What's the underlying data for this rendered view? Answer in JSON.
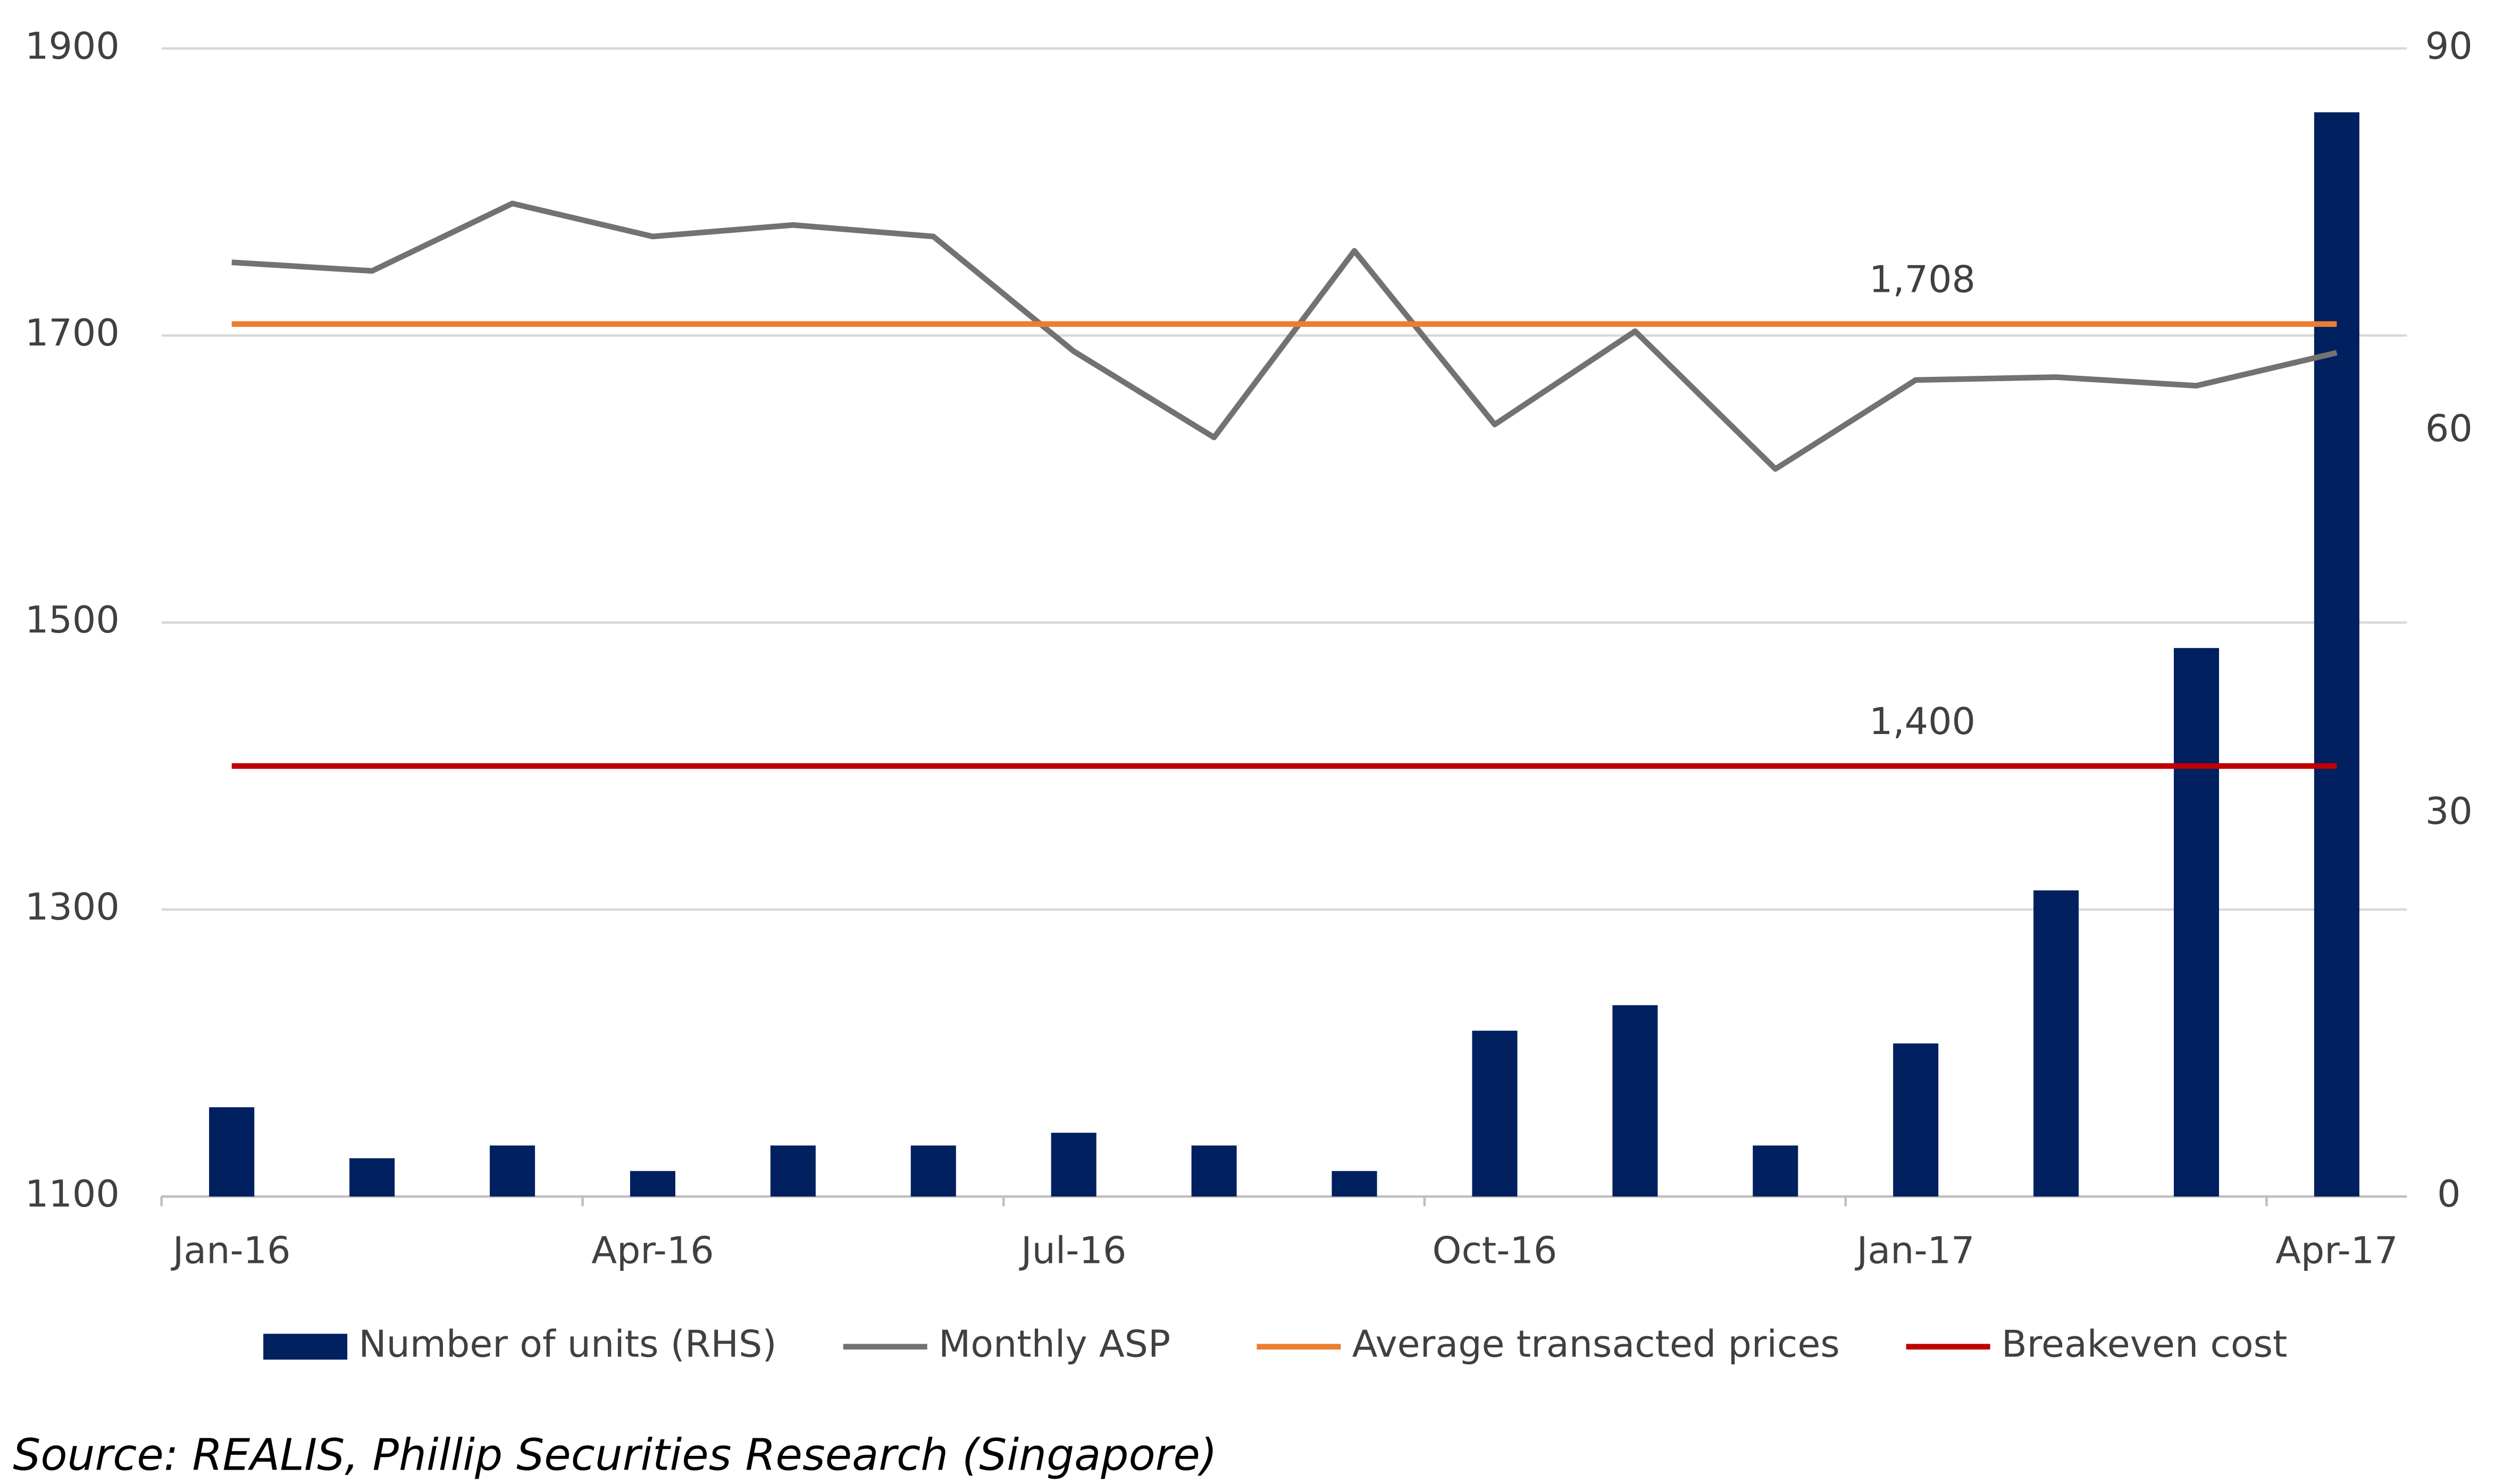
{
  "chart_data": {
    "type": "bar_line",
    "categories": [
      "Jan-16",
      null,
      null,
      "Apr-16",
      null,
      null,
      "Jul-16",
      null,
      null,
      "Oct-16",
      null,
      null,
      "Jan-17",
      null,
      null,
      "Apr-17"
    ],
    "series": [
      {
        "name": "Number of units (RHS)",
        "type": "bar",
        "axis": "y2",
        "color": "#002060",
        "values": [
          7,
          3,
          4,
          2,
          4,
          4,
          5,
          4,
          2,
          13,
          15,
          4,
          12,
          24,
          43,
          85
        ]
      },
      {
        "name": "Monthly ASP",
        "type": "line",
        "color": "#767171",
        "values": [
          1751,
          1745,
          1792,
          1769,
          1777,
          1769,
          1689,
          1629,
          1759,
          1638,
          1703,
          1607,
          1669,
          1671,
          1665,
          1688
        ]
      },
      {
        "name": "Average transacted prices",
        "type": "line",
        "color": "#ed7d31",
        "values": [
          1708,
          1708,
          1708,
          1708,
          1708,
          1708,
          1708,
          1708,
          1708,
          1708,
          1708,
          1708,
          1708,
          1708,
          1708,
          1708
        ]
      },
      {
        "name": "Breakeven cost",
        "type": "line",
        "color": "#c00000",
        "values": [
          1400,
          1400,
          1400,
          1400,
          1400,
          1400,
          1400,
          1400,
          1400,
          1400,
          1400,
          1400,
          1400,
          1400,
          1400,
          1400
        ]
      }
    ],
    "annotations": [
      {
        "text": "1,708",
        "y": 1708
      },
      {
        "text": "1,400",
        "y": 1400
      }
    ],
    "ylim": [
      1100,
      1900
    ],
    "yticks": [
      1100,
      1300,
      1500,
      1700,
      1900
    ],
    "y2lim": [
      0,
      90
    ],
    "y2ticks": [
      0,
      30,
      60,
      90
    ],
    "grid": true,
    "legend": "bottom",
    "source": "Source: REALIS, Phillip Securities Research (Singapore)"
  }
}
